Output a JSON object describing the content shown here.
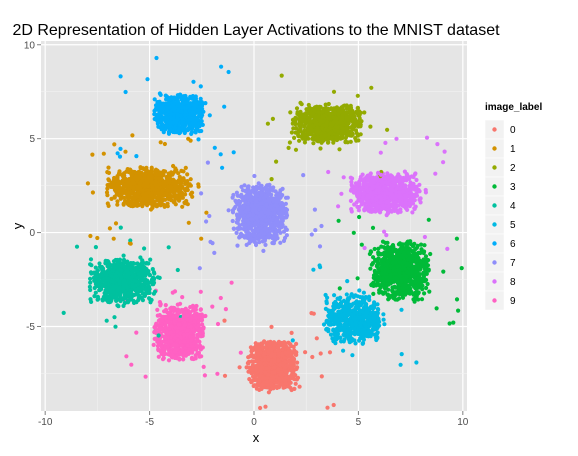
{
  "chart_data": {
    "type": "scatter",
    "title": "2D Representation of Hidden Layer Activations to the MNIST dataset",
    "xlabel": "x",
    "ylabel": "y",
    "xlim": [
      -10.2,
      10.2
    ],
    "ylim": [
      -9.5,
      10.2
    ],
    "x_ticks": [
      -10,
      -5,
      0,
      5,
      10
    ],
    "y_ticks": [
      -5,
      0,
      5,
      10
    ],
    "x_tick_labels": [
      "-10",
      "-5",
      "0",
      "5",
      "10"
    ],
    "y_tick_labels": [
      "-5",
      "0",
      "5",
      "10"
    ],
    "grid": true,
    "panel_background": "#e5e5e5",
    "legend": {
      "title": "image_label",
      "position": "right",
      "entries": [
        "0",
        "1",
        "2",
        "3",
        "4",
        "5",
        "6",
        "7",
        "8",
        "9"
      ]
    },
    "series": [
      {
        "label": "0",
        "color": "#f8766d",
        "center": [
          0.9,
          -7.1
        ],
        "spread": [
          1.0,
          1.1
        ],
        "count": 850
      },
      {
        "label": "1",
        "color": "#d39200",
        "center": [
          -5.0,
          2.4
        ],
        "spread": [
          1.7,
          0.9
        ],
        "count": 800
      },
      {
        "label": "2",
        "color": "#93aa00",
        "center": [
          3.5,
          5.8
        ],
        "spread": [
          1.4,
          0.9
        ],
        "count": 750
      },
      {
        "label": "3",
        "color": "#00ba38",
        "center": [
          7.0,
          -2.0
        ],
        "spread": [
          1.2,
          1.3
        ],
        "count": 800
      },
      {
        "label": "4",
        "color": "#00c19f",
        "center": [
          -6.3,
          -2.6
        ],
        "spread": [
          1.3,
          1.0
        ],
        "count": 750
      },
      {
        "label": "5",
        "color": "#00b9e3",
        "center": [
          4.8,
          -4.6
        ],
        "spread": [
          1.2,
          1.1
        ],
        "count": 550
      },
      {
        "label": "6",
        "color": "#00adfa",
        "center": [
          -3.6,
          6.3
        ],
        "spread": [
          1.0,
          0.9
        ],
        "count": 700
      },
      {
        "label": "7",
        "color": "#8f8efa",
        "center": [
          0.3,
          1.0
        ],
        "spread": [
          1.1,
          1.3
        ],
        "count": 850
      },
      {
        "label": "8",
        "color": "#db72fb",
        "center": [
          6.3,
          2.1
        ],
        "spread": [
          1.4,
          0.9
        ],
        "count": 800
      },
      {
        "label": "9",
        "color": "#ff61c3",
        "center": [
          -3.6,
          -5.3
        ],
        "spread": [
          1.0,
          1.3
        ],
        "count": 750
      }
    ]
  }
}
